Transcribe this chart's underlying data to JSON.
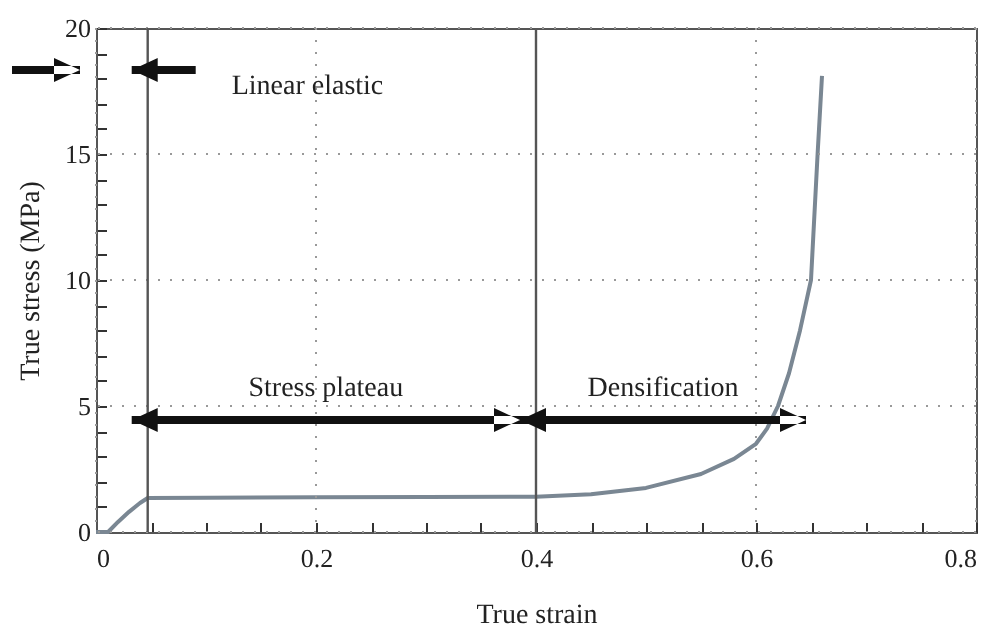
{
  "chart_data": {
    "type": "line",
    "xlabel": "True strain",
    "ylabel": "True stress (MPa)",
    "x": [
      0,
      0.011,
      0.02,
      0.03,
      0.04,
      0.047,
      0.1,
      0.2,
      0.3,
      0.4,
      0.45,
      0.5,
      0.55,
      0.58,
      0.6,
      0.61,
      0.62,
      0.63,
      0.64,
      0.65,
      0.656,
      0.66
    ],
    "series": [
      {
        "color": "#7a8793",
        "values": [
          0,
          0,
          0.4,
          0.8,
          1.15,
          1.35,
          1.36,
          1.38,
          1.39,
          1.4,
          1.5,
          1.75,
          2.3,
          2.9,
          3.5,
          4.1,
          5,
          6.3,
          8,
          10,
          15,
          18.1
        ]
      }
    ],
    "xlim": [
      0,
      0.8
    ],
    "ylim": [
      0,
      20
    ],
    "xticks": [
      0,
      {
        "value": 0.05,
        "label": null
      },
      {
        "value": 0.1,
        "label": null
      },
      {
        "value": 0.15,
        "label": null
      },
      0.2,
      {
        "value": 0.25,
        "label": null
      },
      {
        "value": 0.3,
        "label": null
      },
      {
        "value": 0.35,
        "label": null
      },
      0.4,
      {
        "value": 0.45,
        "label": null
      },
      {
        "value": 0.5,
        "label": null
      },
      {
        "value": 0.55,
        "label": null
      },
      0.6,
      {
        "value": 0.65,
        "label": null
      },
      {
        "value": 0.7,
        "label": null
      },
      {
        "value": 0.75,
        "label": null
      },
      0.8
    ],
    "yticks": [
      0,
      {
        "value": 1,
        "label": null
      },
      {
        "value": 2,
        "label": null
      },
      {
        "value": 3,
        "label": null
      },
      {
        "value": 4,
        "label": null
      },
      5,
      {
        "value": 6,
        "label": null
      },
      {
        "value": 7,
        "label": null
      },
      {
        "value": 8,
        "label": null
      },
      {
        "value": 9,
        "label": null
      },
      10,
      {
        "value": 11,
        "label": null
      },
      {
        "value": 12,
        "label": null
      },
      {
        "value": 13,
        "label": null
      },
      {
        "value": 14,
        "label": null
      },
      15,
      {
        "value": 16,
        "label": null
      },
      {
        "value": 17,
        "label": null
      },
      {
        "value": 18,
        "label": null
      },
      {
        "value": 19,
        "label": null
      },
      20
    ],
    "grid": true,
    "marker": "none",
    "line_style": "solid",
    "ref_lines": [
      {
        "axis": "x",
        "value": 0.047,
        "color": "#555555"
      },
      {
        "axis": "x",
        "value": 0.4,
        "color": "#555555"
      }
    ],
    "annotations": [
      "Linear elastic",
      "Stress plateau",
      "Densification"
    ]
  }
}
